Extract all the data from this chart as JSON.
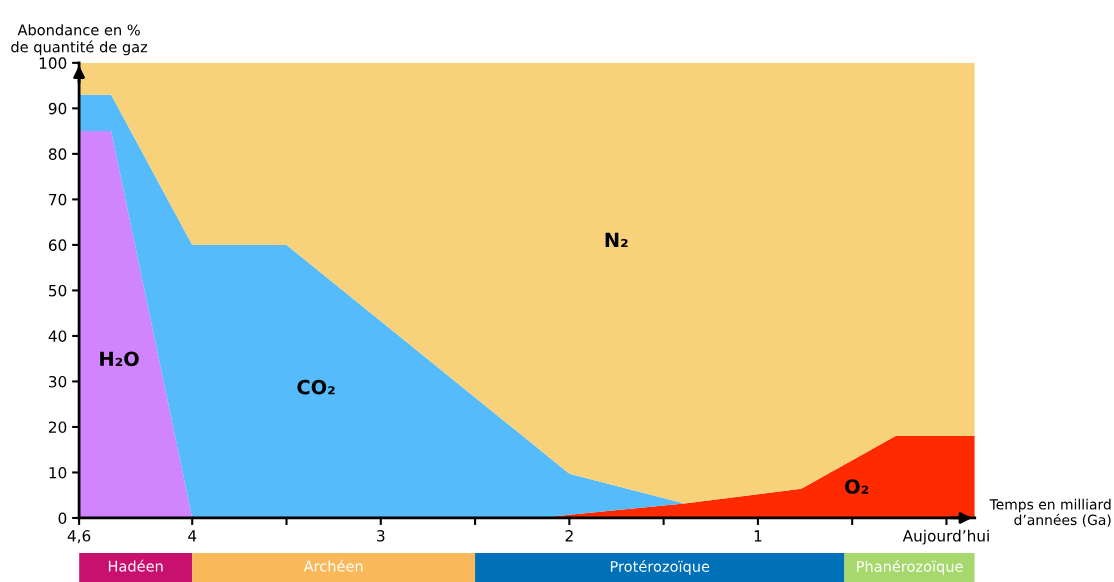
{
  "chart_data": [
    {
      "type": "area",
      "stacked": true,
      "xlabel": "Temps en milliard\nd’années (Ga)",
      "ylabel": "Abondance en %\nde quantité de gaz",
      "x": [
        4.6,
        4.43,
        4.0,
        3.5,
        2.16,
        2.0,
        1.39,
        0.77,
        0.27,
        -0.15
      ],
      "series": [
        {
          "name": "H₂O",
          "color": "#d085ff",
          "values": [
            85,
            85,
            0,
            null,
            null,
            null,
            null,
            null,
            null,
            null
          ]
        },
        {
          "name": "O₂",
          "color": "#ff2a00",
          "values": [
            null,
            null,
            null,
            null,
            0,
            0.7,
            3.2,
            6.4,
            18,
            18
          ]
        },
        {
          "name": "CO₂",
          "color": "#55bbfb",
          "values": [
            8,
            8,
            60,
            60,
            15.1,
            9,
            0,
            null,
            null,
            null
          ]
        },
        {
          "name": "N₂",
          "color": "#f8d27a",
          "values": [
            7,
            7,
            40,
            40,
            84.9,
            90.3,
            96.8,
            93.6,
            82,
            82
          ]
        }
      ],
      "xlim": [
        4.6,
        -0.15
      ],
      "ylim": [
        0,
        100
      ],
      "xticks": [
        {
          "value": 4.6,
          "label": "4,6"
        },
        4,
        {
          "value": 3.5,
          "label": null
        },
        3,
        {
          "value": 2.5,
          "label": null
        },
        2,
        {
          "value": 1.5,
          "label": null
        },
        1,
        {
          "value": 0.5,
          "label": null
        },
        {
          "value": 0,
          "label": "Aujourd’hui"
        }
      ],
      "yticks": [
        0,
        10,
        20,
        30,
        40,
        50,
        60,
        70,
        80,
        90,
        100
      ],
      "grid": false,
      "legend": false
    },
    {
      "type": "bar",
      "orientation": "horizontal",
      "categories": [
        null
      ],
      "xlim": [
        4.6,
        -0.15
      ],
      "tick_labels": false,
      "series": [
        {
          "name": "Hadéen",
          "color": "#c8106e",
          "values": [
            0.6
          ],
          "base": [
            4.0
          ]
        },
        {
          "name": "Archéen",
          "color": "#f9b95a",
          "values": [
            1.5
          ],
          "base": [
            2.5
          ]
        },
        {
          "name": "Protérozoïque",
          "color": "#0070b8",
          "values": [
            1.959
          ],
          "base": [
            0.541
          ]
        },
        {
          "name": "Phanérozoïque",
          "color": "#a6d86e",
          "values": [
            0.691
          ],
          "base": [
            -0.15
          ]
        }
      ]
    }
  ]
}
